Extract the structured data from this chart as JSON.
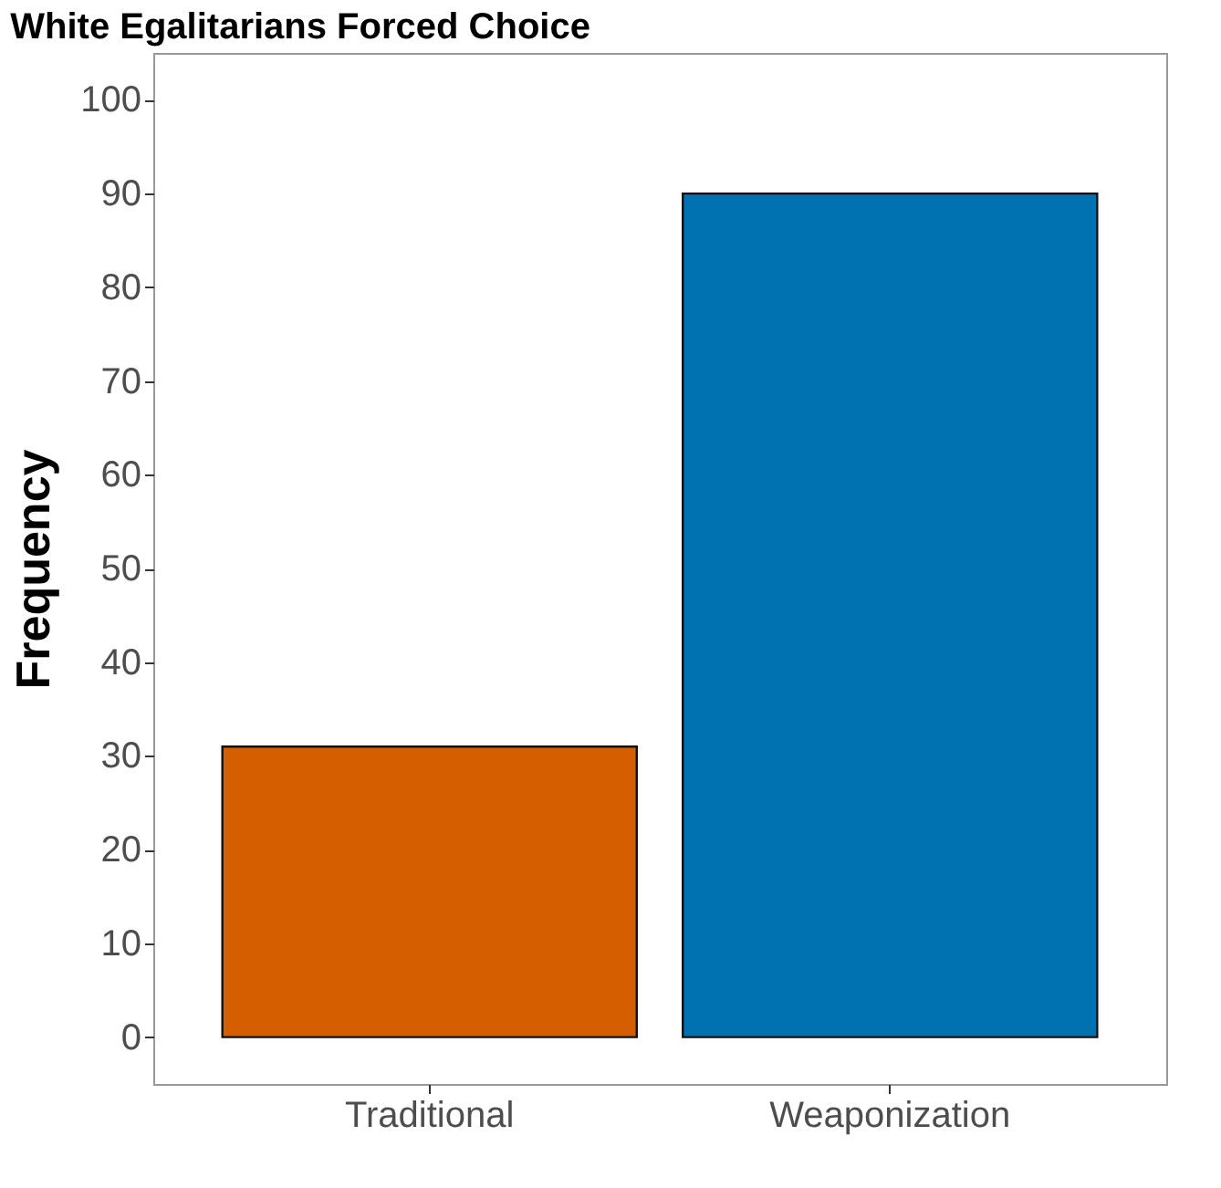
{
  "chart_data": {
    "type": "bar",
    "title": "White Egalitarians Forced Choice",
    "ylabel": "Frequency",
    "categories": [
      "Traditional",
      "Weaponization"
    ],
    "values": [
      31,
      90
    ],
    "colors": [
      "#d55e00",
      "#0072b2"
    ],
    "ylim": [
      -5,
      105
    ],
    "yticks": [
      0,
      10,
      20,
      30,
      40,
      50,
      60,
      70,
      80,
      90,
      100
    ],
    "grid": false,
    "legend": false
  }
}
